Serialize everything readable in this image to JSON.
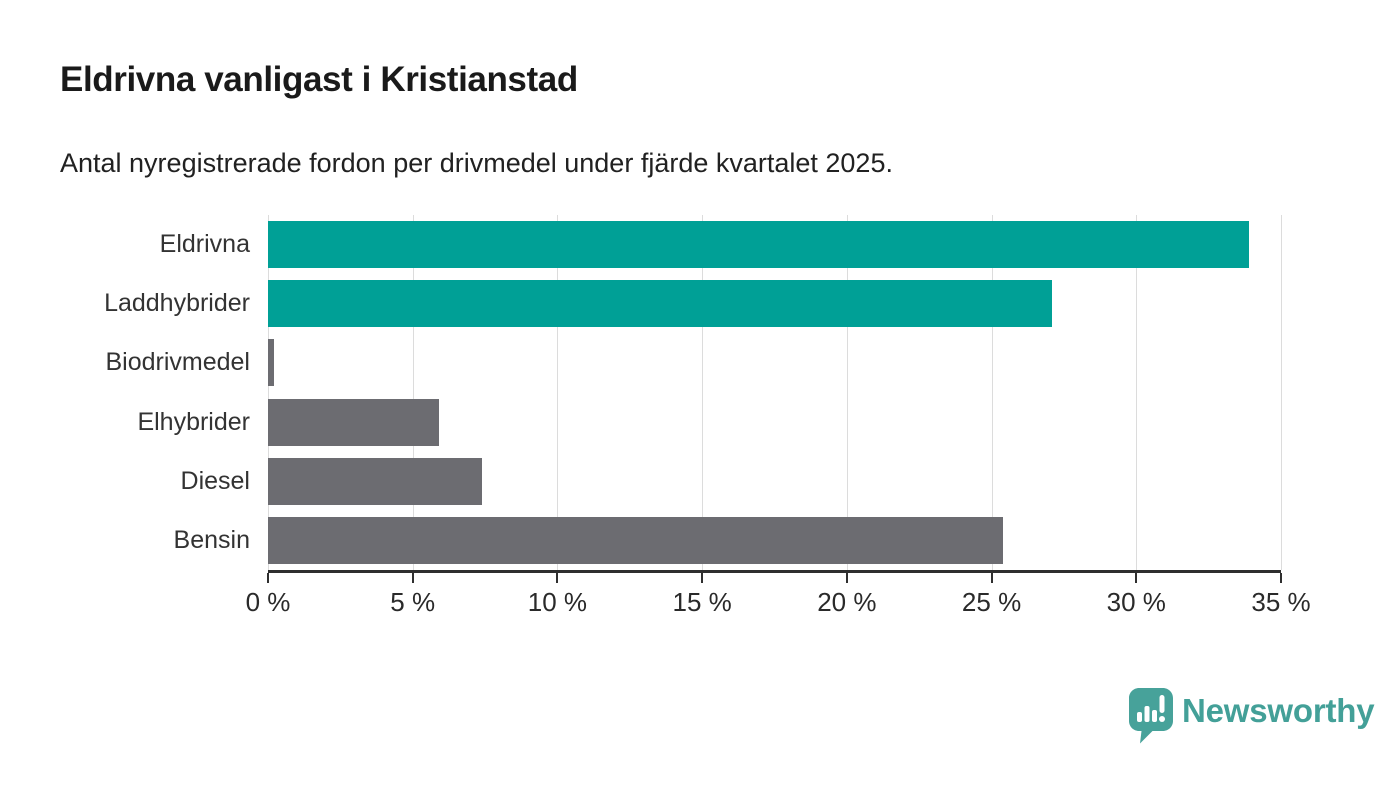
{
  "header": {
    "title": "Eldrivna vanligast i Kristianstad",
    "subtitle": "Antal nyregistrerade fordon per drivmedel under fjärde kvartalet 2025."
  },
  "chart_data": {
    "type": "bar",
    "orientation": "horizontal",
    "title": "Eldrivna vanligast i Kristianstad",
    "subtitle": "Antal nyregistrerade fordon per drivmedel under fjärde kvartalet 2025.",
    "categories": [
      "Eldrivna",
      "Laddhybrider",
      "Biodrivmedel",
      "Elhybrider",
      "Diesel",
      "Bensin"
    ],
    "values": [
      33.9,
      27.1,
      0.2,
      5.9,
      7.4,
      25.4
    ],
    "unit": "%",
    "xlabel": "",
    "ylabel": "",
    "xlim": [
      0,
      35
    ],
    "xticks": [
      0,
      5,
      10,
      15,
      20,
      25,
      30,
      35
    ],
    "xtick_labels": [
      "0 %",
      "5 %",
      "10 %",
      "15 %",
      "20 %",
      "25 %",
      "30 %",
      "35 %"
    ],
    "bar_colors": [
      "#00a096",
      "#00a096",
      "#6c6c71",
      "#6c6c71",
      "#6c6c71",
      "#6c6c71"
    ],
    "grid": "vertical",
    "legend": "none"
  },
  "colors": {
    "highlight": "#00a096",
    "neutral": "#6c6c71",
    "gridline": "#dcdcdc",
    "axis": "#2f2f2f",
    "brand": "#43a098"
  },
  "footer": {
    "brand": "Newsworthy",
    "logo_icon": "speech-bubble-bar-chart-icon"
  }
}
